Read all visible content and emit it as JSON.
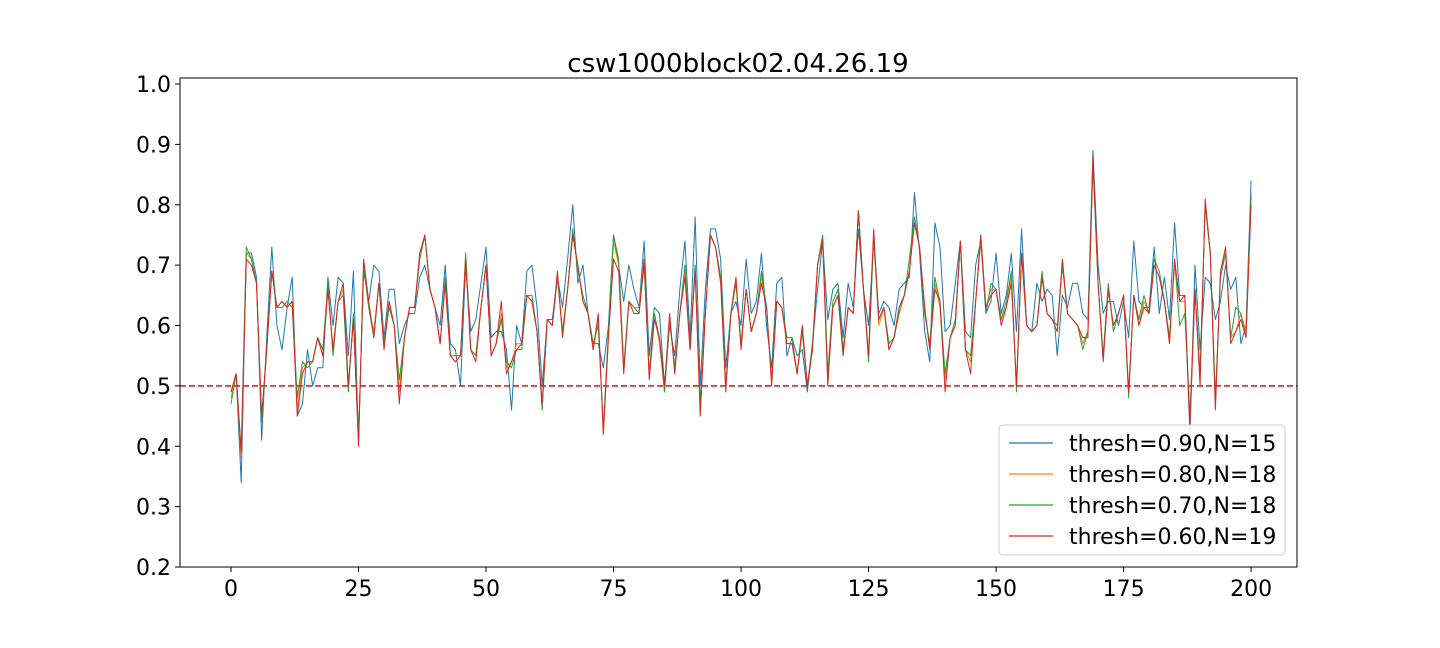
{
  "chart_data": {
    "type": "line",
    "title": "csw1000block02.04.26.19",
    "xlabel": "",
    "ylabel": "",
    "xlim": [
      -10,
      209
    ],
    "ylim": [
      0.2,
      1.01
    ],
    "x_ticks": [
      0,
      25,
      50,
      75,
      100,
      125,
      150,
      175,
      200
    ],
    "y_ticks": [
      0.2,
      0.3,
      0.4,
      0.5,
      0.6,
      0.7,
      0.8,
      0.9,
      1.0
    ],
    "x_tick_labels": [
      "0",
      "25",
      "50",
      "75",
      "100",
      "125",
      "150",
      "175",
      "200"
    ],
    "y_tick_labels": [
      "0.2",
      "0.3",
      "0.4",
      "0.5",
      "0.6",
      "0.7",
      "0.8",
      "0.9",
      "1.0"
    ],
    "grid": false,
    "legend_position": "lower-right",
    "reference_line": {
      "y": 0.5,
      "color": "#d62728",
      "style": "dashed"
    },
    "series": [
      {
        "name": "thresh=0.90,N=15",
        "color": "#1f77b4",
        "values": [
          0.49,
          0.52,
          0.34,
          0.72,
          0.72,
          0.68,
          0.41,
          0.58,
          0.73,
          0.6,
          0.56,
          0.63,
          0.68,
          0.45,
          0.47,
          0.56,
          0.5,
          0.53,
          0.53,
          0.68,
          0.6,
          0.68,
          0.67,
          0.55,
          0.69,
          0.41,
          0.69,
          0.64,
          0.7,
          0.69,
          0.58,
          0.66,
          0.66,
          0.57,
          0.6,
          0.62,
          0.62,
          0.68,
          0.7,
          0.66,
          0.63,
          0.6,
          0.7,
          0.57,
          0.56,
          0.5,
          0.7,
          0.59,
          0.61,
          0.67,
          0.73,
          0.58,
          0.59,
          0.59,
          0.56,
          0.46,
          0.6,
          0.57,
          0.69,
          0.7,
          0.63,
          0.5,
          0.61,
          0.61,
          0.68,
          0.63,
          0.71,
          0.8,
          0.67,
          0.7,
          0.62,
          0.57,
          0.57,
          0.53,
          0.6,
          0.75,
          0.7,
          0.64,
          0.7,
          0.66,
          0.63,
          0.74,
          0.55,
          0.63,
          0.62,
          0.5,
          0.6,
          0.55,
          0.66,
          0.74,
          0.58,
          0.78,
          0.5,
          0.66,
          0.76,
          0.76,
          0.71,
          0.53,
          0.62,
          0.64,
          0.6,
          0.71,
          0.62,
          0.64,
          0.72,
          0.6,
          0.53,
          0.67,
          0.68,
          0.55,
          0.58,
          0.55,
          0.56,
          0.49,
          0.57,
          0.66,
          0.74,
          0.61,
          0.66,
          0.67,
          0.58,
          0.67,
          0.63,
          0.76,
          0.66,
          0.6,
          0.74,
          0.62,
          0.64,
          0.63,
          0.6,
          0.66,
          0.67,
          0.68,
          0.82,
          0.72,
          0.59,
          0.54,
          0.77,
          0.73,
          0.59,
          0.6,
          0.67,
          0.74,
          0.59,
          0.58,
          0.7,
          0.74,
          0.62,
          0.64,
          0.72,
          0.62,
          0.65,
          0.72,
          0.59,
          0.76,
          0.6,
          0.59,
          0.67,
          0.64,
          0.66,
          0.65,
          0.55,
          0.65,
          0.63,
          0.67,
          0.67,
          0.62,
          0.61,
          0.89,
          0.7,
          0.62,
          0.64,
          0.64,
          0.6,
          0.64,
          0.58,
          0.74,
          0.64,
          0.63,
          0.63,
          0.73,
          0.62,
          0.68,
          0.61,
          0.77,
          0.65,
          0.65,
          0.42,
          0.7,
          0.56,
          0.68,
          0.67,
          0.61,
          0.64,
          0.7,
          0.66,
          0.68,
          0.57,
          0.6,
          0.84
        ]
      },
      {
        "name": "thresh=0.80,N=18",
        "color": "#ff7f0e",
        "values": [
          0.48,
          0.52,
          0.38,
          0.72,
          0.71,
          0.67,
          0.44,
          0.56,
          0.69,
          0.63,
          0.64,
          0.63,
          0.64,
          0.46,
          0.53,
          0.54,
          0.54,
          0.58,
          0.55,
          0.66,
          0.56,
          0.64,
          0.66,
          0.5,
          0.61,
          0.41,
          0.7,
          0.63,
          0.59,
          0.67,
          0.57,
          0.64,
          0.6,
          0.49,
          0.58,
          0.63,
          0.63,
          0.71,
          0.75,
          0.66,
          0.63,
          0.57,
          0.67,
          0.55,
          0.54,
          0.55,
          0.71,
          0.56,
          0.55,
          0.63,
          0.7,
          0.55,
          0.57,
          0.62,
          0.53,
          0.54,
          0.57,
          0.57,
          0.65,
          0.64,
          0.59,
          0.47,
          0.61,
          0.6,
          0.68,
          0.59,
          0.66,
          0.75,
          0.7,
          0.64,
          0.62,
          0.56,
          0.61,
          0.42,
          0.58,
          0.74,
          0.7,
          0.53,
          0.64,
          0.63,
          0.63,
          0.71,
          0.52,
          0.62,
          0.57,
          0.49,
          0.61,
          0.53,
          0.62,
          0.69,
          0.56,
          0.7,
          0.46,
          0.62,
          0.75,
          0.73,
          0.68,
          0.5,
          0.62,
          0.67,
          0.57,
          0.66,
          0.59,
          0.62,
          0.68,
          0.63,
          0.51,
          0.64,
          0.63,
          0.57,
          0.57,
          0.52,
          0.6,
          0.5,
          0.56,
          0.7,
          0.75,
          0.51,
          0.63,
          0.65,
          0.56,
          0.63,
          0.62,
          0.79,
          0.66,
          0.55,
          0.75,
          0.6,
          0.63,
          0.56,
          0.58,
          0.63,
          0.65,
          0.69,
          0.77,
          0.73,
          0.63,
          0.56,
          0.67,
          0.63,
          0.51,
          0.58,
          0.6,
          0.74,
          0.56,
          0.54,
          0.64,
          0.74,
          0.63,
          0.66,
          0.66,
          0.61,
          0.63,
          0.68,
          0.5,
          0.72,
          0.6,
          0.59,
          0.6,
          0.68,
          0.62,
          0.61,
          0.59,
          0.7,
          0.62,
          0.61,
          0.6,
          0.57,
          0.59,
          0.87,
          0.67,
          0.55,
          0.66,
          0.6,
          0.62,
          0.65,
          0.49,
          0.65,
          0.6,
          0.64,
          0.62,
          0.7,
          0.68,
          0.64,
          0.58,
          0.7,
          0.64,
          0.64,
          0.44,
          0.66,
          0.52,
          0.8,
          0.72,
          0.47,
          0.69,
          0.72,
          0.58,
          0.59,
          0.62,
          0.59,
          0.81
        ]
      },
      {
        "name": "thresh=0.70,N=18",
        "color": "#2ca02c",
        "values": [
          0.47,
          0.52,
          0.39,
          0.73,
          0.71,
          0.67,
          0.44,
          0.56,
          0.69,
          0.63,
          0.63,
          0.64,
          0.63,
          0.48,
          0.54,
          0.53,
          0.54,
          0.58,
          0.56,
          0.67,
          0.55,
          0.64,
          0.65,
          0.49,
          0.62,
          0.41,
          0.7,
          0.63,
          0.58,
          0.67,
          0.57,
          0.63,
          0.6,
          0.51,
          0.58,
          0.63,
          0.63,
          0.71,
          0.75,
          0.66,
          0.63,
          0.57,
          0.68,
          0.55,
          0.55,
          0.55,
          0.72,
          0.56,
          0.55,
          0.63,
          0.7,
          0.55,
          0.57,
          0.61,
          0.54,
          0.53,
          0.56,
          0.56,
          0.65,
          0.65,
          0.59,
          0.46,
          0.61,
          0.6,
          0.68,
          0.59,
          0.66,
          0.76,
          0.69,
          0.65,
          0.62,
          0.57,
          0.6,
          0.43,
          0.59,
          0.75,
          0.71,
          0.53,
          0.64,
          0.63,
          0.62,
          0.7,
          0.52,
          0.62,
          0.58,
          0.49,
          0.61,
          0.53,
          0.62,
          0.7,
          0.56,
          0.7,
          0.47,
          0.62,
          0.75,
          0.73,
          0.68,
          0.5,
          0.62,
          0.67,
          0.57,
          0.66,
          0.59,
          0.62,
          0.69,
          0.63,
          0.51,
          0.64,
          0.63,
          0.58,
          0.58,
          0.52,
          0.59,
          0.5,
          0.57,
          0.7,
          0.75,
          0.52,
          0.64,
          0.66,
          0.56,
          0.63,
          0.62,
          0.79,
          0.66,
          0.54,
          0.75,
          0.61,
          0.63,
          0.57,
          0.58,
          0.62,
          0.65,
          0.71,
          0.78,
          0.73,
          0.62,
          0.57,
          0.68,
          0.64,
          0.52,
          0.58,
          0.61,
          0.74,
          0.56,
          0.55,
          0.64,
          0.75,
          0.62,
          0.67,
          0.66,
          0.61,
          0.64,
          0.69,
          0.49,
          0.72,
          0.6,
          0.59,
          0.6,
          0.69,
          0.62,
          0.61,
          0.6,
          0.7,
          0.62,
          0.61,
          0.6,
          0.56,
          0.59,
          0.87,
          0.67,
          0.55,
          0.67,
          0.59,
          0.62,
          0.65,
          0.48,
          0.65,
          0.61,
          0.65,
          0.62,
          0.71,
          0.69,
          0.64,
          0.58,
          0.71,
          0.6,
          0.62,
          0.45,
          0.66,
          0.52,
          0.8,
          0.72,
          0.48,
          0.68,
          0.72,
          0.58,
          0.63,
          0.62,
          0.58,
          0.82
        ]
      },
      {
        "name": "thresh=0.60,N=19",
        "color": "#d62728",
        "values": [
          0.49,
          0.52,
          0.39,
          0.71,
          0.7,
          0.67,
          0.45,
          0.56,
          0.69,
          0.63,
          0.64,
          0.63,
          0.64,
          0.45,
          0.52,
          0.54,
          0.54,
          0.58,
          0.55,
          0.66,
          0.56,
          0.64,
          0.67,
          0.5,
          0.61,
          0.4,
          0.71,
          0.64,
          0.58,
          0.67,
          0.56,
          0.64,
          0.6,
          0.47,
          0.58,
          0.63,
          0.63,
          0.72,
          0.75,
          0.66,
          0.63,
          0.57,
          0.67,
          0.55,
          0.54,
          0.55,
          0.71,
          0.56,
          0.54,
          0.63,
          0.7,
          0.55,
          0.57,
          0.64,
          0.52,
          0.54,
          0.56,
          0.57,
          0.65,
          0.64,
          0.59,
          0.47,
          0.61,
          0.6,
          0.69,
          0.58,
          0.66,
          0.75,
          0.7,
          0.64,
          0.62,
          0.56,
          0.62,
          0.42,
          0.58,
          0.71,
          0.69,
          0.52,
          0.64,
          0.62,
          0.62,
          0.71,
          0.51,
          0.61,
          0.58,
          0.5,
          0.62,
          0.52,
          0.62,
          0.68,
          0.56,
          0.69,
          0.45,
          0.62,
          0.75,
          0.73,
          0.67,
          0.49,
          0.62,
          0.68,
          0.56,
          0.66,
          0.59,
          0.62,
          0.67,
          0.63,
          0.5,
          0.64,
          0.63,
          0.57,
          0.57,
          0.52,
          0.6,
          0.5,
          0.56,
          0.7,
          0.74,
          0.5,
          0.63,
          0.65,
          0.55,
          0.63,
          0.62,
          0.79,
          0.66,
          0.55,
          0.76,
          0.61,
          0.63,
          0.56,
          0.58,
          0.63,
          0.65,
          0.69,
          0.77,
          0.73,
          0.63,
          0.56,
          0.66,
          0.64,
          0.49,
          0.58,
          0.6,
          0.74,
          0.56,
          0.52,
          0.64,
          0.75,
          0.63,
          0.65,
          0.66,
          0.6,
          0.63,
          0.67,
          0.5,
          0.72,
          0.6,
          0.59,
          0.6,
          0.68,
          0.62,
          0.61,
          0.59,
          0.71,
          0.62,
          0.61,
          0.6,
          0.58,
          0.58,
          0.88,
          0.67,
          0.54,
          0.66,
          0.6,
          0.62,
          0.65,
          0.49,
          0.65,
          0.6,
          0.63,
          0.62,
          0.7,
          0.68,
          0.64,
          0.57,
          0.71,
          0.64,
          0.65,
          0.43,
          0.66,
          0.5,
          0.81,
          0.72,
          0.46,
          0.69,
          0.73,
          0.57,
          0.59,
          0.61,
          0.58,
          0.8
        ]
      }
    ]
  }
}
